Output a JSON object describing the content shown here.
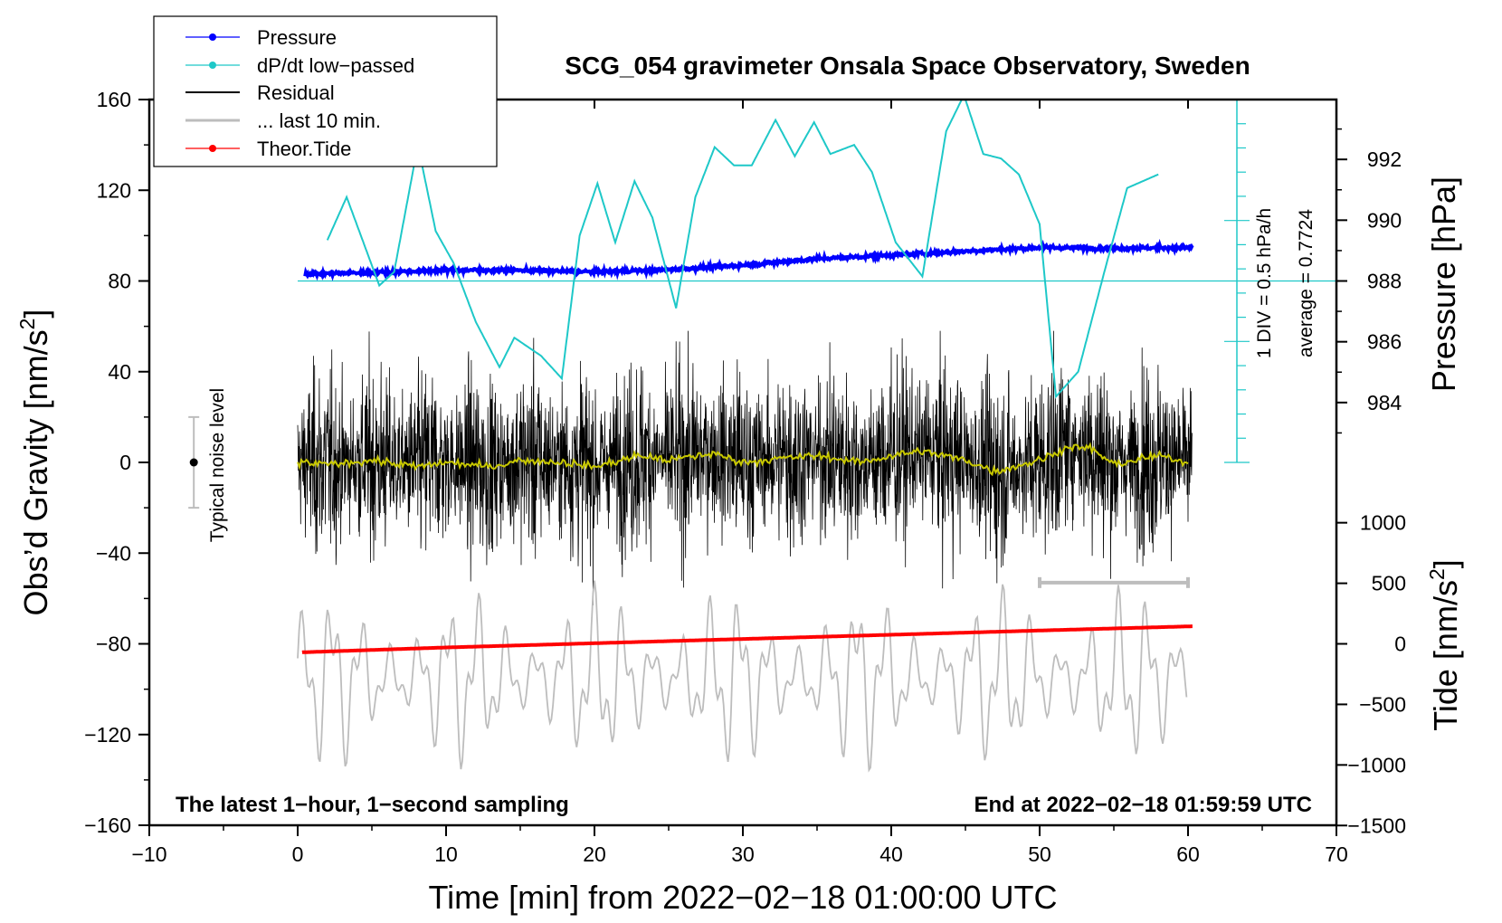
{
  "chart_data": {
    "type": "line",
    "title": "SCG_054 gravimeter Onsala Space Observatory, Sweden",
    "xlabel": "Time [min] from 2022−02−18 01:00:00 UTC",
    "ylabel_left": "Obs’d Gravity [nm/s",
    "ylabel_left_sup": "2",
    "ylabel_left_end": "]",
    "ylabel_right_pressure": "Pressure [hPa]",
    "ylabel_right_tide": "Tide [nm/s",
    "ylabel_right_tide_sup": "2",
    "ylabel_right_tide_end": "]",
    "xlim": [
      -10,
      70
    ],
    "ylim": [
      -160,
      160
    ],
    "x_ticks": [
      "−10",
      "0",
      "10",
      "20",
      "30",
      "40",
      "50",
      "60",
      "70"
    ],
    "x_tick_values": [
      -10,
      0,
      10,
      20,
      30,
      40,
      50,
      60,
      70
    ],
    "y_ticks": [
      "160",
      "120",
      "80",
      "40",
      "0",
      "−40",
      "−80",
      "−120",
      "−160"
    ],
    "y_tick_values": [
      160,
      120,
      80,
      40,
      0,
      -40,
      -80,
      -120,
      -160
    ],
    "pressure_axis": {
      "ticks": [
        "992",
        "990",
        "988",
        "986",
        "984"
      ],
      "values": [
        992,
        990,
        988,
        986,
        984
      ],
      "gravity_at_988": 80,
      "gravity_per_hPa": 13.4
    },
    "tide_axis": {
      "ticks": [
        "1000",
        "500",
        "0",
        "−500",
        "−1000",
        "−1500"
      ],
      "values": [
        1000,
        500,
        0,
        -500,
        -1000,
        -1500
      ],
      "gravity_at_0": -80,
      "gravity_per_unit": 0.0534
    },
    "legend": {
      "position": "top-left",
      "entries": [
        {
          "label": "Pressure",
          "color": "#0000ff",
          "marker": true
        },
        {
          "label": "dP/dt low−passed",
          "color": "#1ec8c8",
          "marker": true
        },
        {
          "label": "Residual",
          "color": "#000000",
          "marker": false
        },
        {
          "label": "... last 10 min.",
          "color": "#bdbdbd",
          "marker": false
        },
        {
          "label": "Theor.Tide",
          "color": "#ff0000",
          "marker": true
        }
      ]
    },
    "annotations": {
      "div_label": "1 DIV = 0.5 hPa/h",
      "average_label": "average = 0.7724",
      "noise_label": "Typical noise level",
      "noise_level": 20,
      "bottom_left": "The latest 1−hour, 1−second sampling",
      "bottom_right": "End at 2022−02−18 01:59:59 UTC"
    },
    "series": [
      {
        "name": "Pressure",
        "color": "#0000ff",
        "unit": "hPa",
        "x": [
          0.5,
          5,
          10,
          15,
          20,
          25,
          30,
          35,
          40,
          45,
          50,
          55,
          60.3
        ],
        "values": [
          988.23,
          988.28,
          988.36,
          988.35,
          988.3,
          988.37,
          988.52,
          988.73,
          988.85,
          988.98,
          989.1,
          989.08,
          989.1
        ]
      },
      {
        "name": "dP/dt low-passed",
        "color": "#1ec8c8",
        "unit": "gravity-axis units",
        "x": [
          2,
          3.3,
          5.5,
          6.5,
          8.1,
          9.3,
          10.5,
          12,
          13.6,
          14.6,
          16.4,
          17.8,
          19,
          20.2,
          21.4,
          22.7,
          23.9,
          25.5,
          26.8,
          28.1,
          29.4,
          30.6,
          32.2,
          33.5,
          34.8,
          35.9,
          37.5,
          38.7,
          40.3,
          42.1,
          43.7,
          44.9,
          46.2,
          47.4,
          48.6,
          50,
          51.1,
          52.6,
          54.4,
          55.9,
          58
        ],
        "values": [
          98,
          117,
          78,
          84,
          140,
          102,
          88,
          62,
          42,
          55,
          47,
          37,
          100,
          123,
          97,
          124,
          108,
          68,
          117,
          139,
          131,
          131,
          151,
          135,
          150,
          136,
          140,
          128,
          97,
          82,
          146,
          162,
          136,
          134,
          127,
          105,
          29,
          40,
          85,
          121,
          127
        ]
      },
      {
        "name": "Theor.Tide",
        "color": "#ff0000",
        "unit": "nm/s2",
        "x": [
          0.3,
          10,
          20,
          30,
          40,
          50,
          60.3
        ],
        "values": [
          -70,
          -30,
          5,
          40,
          75,
          110,
          145
        ]
      },
      {
        "name": "Residual",
        "color": "#000000",
        "unit": "nm/s2",
        "x_range": [
          0,
          60.3
        ],
        "noise_amplitude": 25,
        "trend": "noise about 0"
      },
      {
        "name": "Residual running mean",
        "color": "#c8c800",
        "unit": "nm/s2",
        "x": [
          0,
          2,
          5,
          8,
          10,
          13,
          15,
          18,
          20,
          23,
          25,
          28,
          30,
          33,
          35,
          38,
          40,
          42,
          45,
          47,
          50,
          52,
          53.5,
          55,
          58,
          60
        ],
        "values": [
          0,
          -1,
          1,
          -2,
          0,
          -2,
          1,
          0,
          -2,
          3,
          1,
          4,
          0,
          2,
          3,
          0,
          3,
          5,
          1,
          -4,
          1,
          7,
          6,
          -1,
          3,
          0
        ]
      },
      {
        "name": "... last 10 min.",
        "color": "#bdbdbd",
        "unit": "nm/s2",
        "x_range": [
          0,
          60
        ],
        "center": -95,
        "amplitude": 30
      }
    ],
    "last10_bracket": {
      "x_start": 50,
      "x_end": 60,
      "y": -53
    }
  }
}
